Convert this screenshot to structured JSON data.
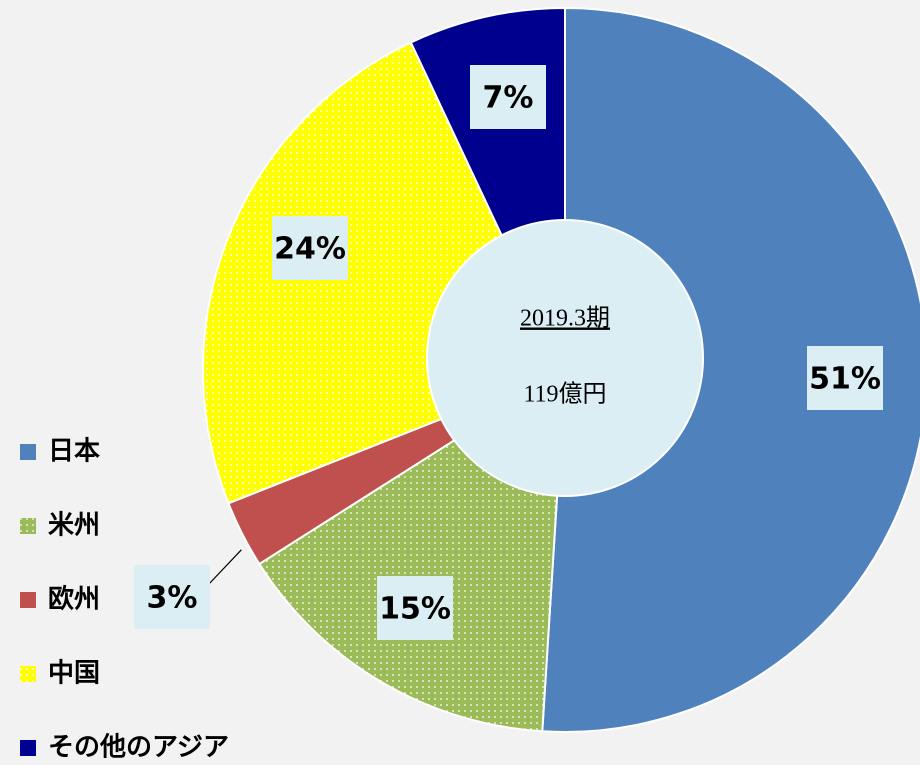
{
  "chart_data": {
    "type": "donut",
    "center_title": "2019.3期",
    "center_text": "119億円",
    "categories": [
      "日本",
      "米州",
      "欧州",
      "中国",
      "その他のアジア"
    ],
    "values": [
      51,
      15,
      3,
      24,
      7
    ],
    "value_labels": [
      "51%",
      "15%",
      "3%",
      "24%",
      "7%"
    ],
    "colors": [
      "#4f81bd",
      "#9bbb59",
      "#c0504d",
      "#ffff00",
      "#00008f"
    ],
    "patterns": [
      "solid",
      "dots",
      "solid",
      "dots",
      "solid"
    ],
    "legend": "left"
  }
}
